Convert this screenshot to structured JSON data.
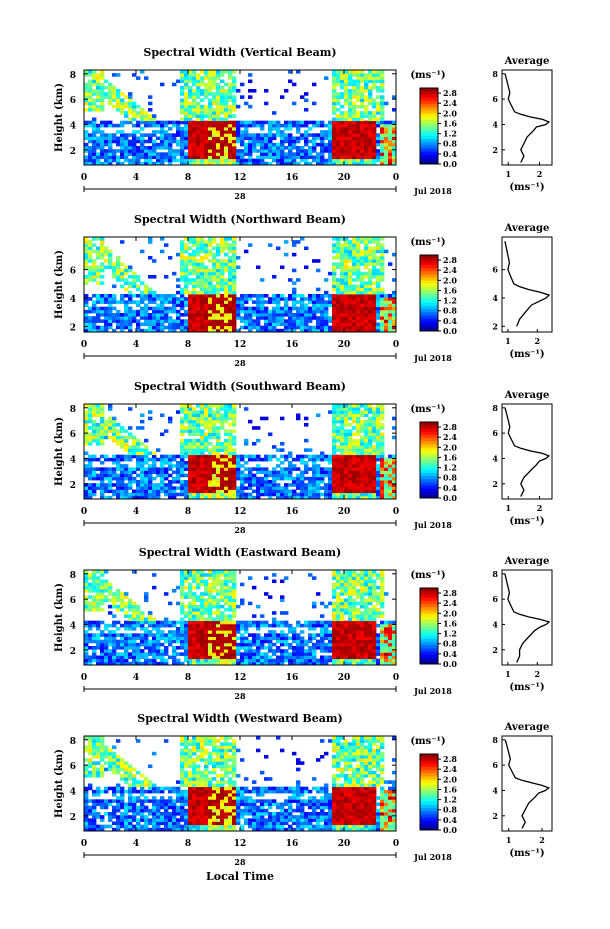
{
  "figure": {
    "xlabel": "Local Time",
    "date_label": "Jul 2018",
    "day_label": "28",
    "cbar_unit": "(ms⁻¹)",
    "profile_title": "Average",
    "profile_xlabel": "(ms⁻¹)"
  },
  "chart_data": [
    {
      "type": "heatmap",
      "title": "Spectral Width (Vertical Beam)",
      "ylabel": "Height (km)",
      "xlabel": "",
      "x_ticks": [
        "0",
        "4",
        "8",
        "12",
        "16",
        "20",
        "0"
      ],
      "y_ticks": [
        "2",
        "4",
        "6",
        "8"
      ],
      "xlim": [
        0,
        24
      ],
      "ylim": [
        0.8,
        8.3
      ],
      "colorbar": {
        "ticks": [
          "0.0",
          "0.4",
          "0.8",
          "1.2",
          "1.6",
          "2.0",
          "2.4",
          "2.8"
        ],
        "range": [
          0,
          3.0
        ]
      },
      "average_profile": {
        "xlabel": "(ms⁻¹)",
        "x_ticks": [
          "1",
          "2"
        ],
        "xlim": [
          0.8,
          2.4
        ],
        "heights": [
          1.0,
          1.5,
          2.0,
          2.5,
          3.0,
          3.5,
          3.8,
          4.0,
          4.2,
          4.4,
          4.6,
          4.8,
          5.0,
          5.5,
          6.0,
          6.5,
          7.0,
          7.5,
          8.0
        ],
        "values": [
          1.4,
          1.5,
          1.4,
          1.5,
          1.6,
          1.8,
          1.9,
          2.2,
          2.3,
          2.1,
          1.7,
          1.4,
          1.2,
          1.1,
          1.0,
          1.05,
          1.0,
          0.95,
          0.9
        ]
      }
    },
    {
      "type": "heatmap",
      "title": "Spectral Width (Northward Beam)",
      "ylabel": "Height (km)",
      "xlabel": "",
      "x_ticks": [
        "0",
        "4",
        "8",
        "12",
        "16",
        "20",
        "0"
      ],
      "y_ticks": [
        "2",
        "4",
        "6"
      ],
      "xlim": [
        0,
        24
      ],
      "ylim": [
        1.6,
        8.3
      ],
      "colorbar": {
        "ticks": [
          "0.0",
          "0.4",
          "0.8",
          "1.2",
          "1.6",
          "2.0",
          "2.4",
          "2.8"
        ],
        "range": [
          0,
          3.0
        ]
      },
      "average_profile": {
        "xlabel": "(ms⁻¹)",
        "x_ticks": [
          "1",
          "2"
        ],
        "xlim": [
          0.8,
          2.5
        ],
        "heights": [
          2.0,
          2.5,
          3.0,
          3.5,
          3.8,
          4.0,
          4.2,
          4.4,
          4.6,
          4.8,
          5.0,
          5.5,
          6.0,
          6.5,
          7.0,
          7.5,
          8.0
        ],
        "values": [
          1.3,
          1.4,
          1.6,
          1.8,
          2.1,
          2.3,
          2.4,
          2.1,
          1.7,
          1.4,
          1.2,
          1.1,
          1.0,
          1.05,
          1.0,
          0.95,
          0.9
        ]
      }
    },
    {
      "type": "heatmap",
      "title": "Spectral Width (Southward Beam)",
      "ylabel": "Height (km)",
      "xlabel": "",
      "x_ticks": [
        "0",
        "4",
        "8",
        "12",
        "16",
        "20",
        "0"
      ],
      "y_ticks": [
        "2",
        "4",
        "6",
        "8"
      ],
      "xlim": [
        0,
        24
      ],
      "ylim": [
        0.8,
        8.3
      ],
      "colorbar": {
        "ticks": [
          "0.0",
          "0.4",
          "0.8",
          "1.2",
          "1.6",
          "2.0",
          "2.4",
          "2.8"
        ],
        "range": [
          0,
          3.0
        ]
      },
      "average_profile": {
        "xlabel": "(ms⁻¹)",
        "x_ticks": [
          "1",
          "2"
        ],
        "xlim": [
          0.8,
          2.4
        ],
        "heights": [
          1.0,
          1.5,
          2.0,
          2.5,
          3.0,
          3.5,
          3.8,
          4.0,
          4.2,
          4.4,
          4.6,
          4.8,
          5.0,
          5.5,
          6.0,
          6.5,
          7.0,
          7.5,
          8.0
        ],
        "values": [
          1.4,
          1.5,
          1.4,
          1.5,
          1.7,
          1.9,
          2.0,
          2.2,
          2.3,
          2.1,
          1.7,
          1.4,
          1.2,
          1.1,
          1.0,
          1.05,
          1.0,
          0.95,
          0.9
        ]
      }
    },
    {
      "type": "heatmap",
      "title": "Spectral Width (Eastward Beam)",
      "ylabel": "Height (km)",
      "xlabel": "",
      "x_ticks": [
        "0",
        "4",
        "8",
        "12",
        "16",
        "20",
        "0"
      ],
      "y_ticks": [
        "2",
        "4",
        "6",
        "8"
      ],
      "xlim": [
        0,
        24
      ],
      "ylim": [
        0.8,
        8.3
      ],
      "colorbar": {
        "ticks": [
          "0.0",
          "0.4",
          "0.8",
          "1.2",
          "1.6",
          "2.0",
          "2.4",
          "2.8"
        ],
        "range": [
          0,
          3.0
        ]
      },
      "average_profile": {
        "xlabel": "(ms⁻¹)",
        "x_ticks": [
          "1",
          "2"
        ],
        "xlim": [
          0.8,
          2.5
        ],
        "heights": [
          1.0,
          1.5,
          2.0,
          2.5,
          3.0,
          3.5,
          3.8,
          4.0,
          4.2,
          4.4,
          4.6,
          4.8,
          5.0,
          5.5,
          6.0,
          6.5,
          7.0,
          7.5,
          8.0
        ],
        "values": [
          1.3,
          1.4,
          1.4,
          1.5,
          1.7,
          1.9,
          2.1,
          2.3,
          2.4,
          2.1,
          1.7,
          1.4,
          1.2,
          1.1,
          1.0,
          1.05,
          1.0,
          0.95,
          0.9
        ]
      }
    },
    {
      "type": "heatmap",
      "title": "Spectral Width (Westward Beam)",
      "ylabel": "Height (km)",
      "xlabel": "Local Time",
      "x_ticks": [
        "0",
        "4",
        "8",
        "12",
        "16",
        "20",
        "0"
      ],
      "y_ticks": [
        "2",
        "4",
        "6",
        "8"
      ],
      "xlim": [
        0,
        24
      ],
      "ylim": [
        0.8,
        8.3
      ],
      "colorbar": {
        "ticks": [
          "0.0",
          "0.4",
          "0.8",
          "1.2",
          "1.6",
          "2.0",
          "2.4",
          "2.8"
        ],
        "range": [
          0,
          3.0
        ]
      },
      "average_profile": {
        "xlabel": "(ms⁻¹)",
        "x_ticks": [
          "1",
          "2"
        ],
        "xlim": [
          0.8,
          2.3
        ],
        "heights": [
          1.0,
          1.5,
          2.0,
          2.5,
          3.0,
          3.5,
          3.8,
          4.0,
          4.2,
          4.4,
          4.6,
          4.8,
          5.0,
          5.5,
          6.0,
          6.5,
          7.0,
          7.5,
          8.0
        ],
        "values": [
          1.4,
          1.5,
          1.4,
          1.5,
          1.6,
          1.8,
          1.9,
          2.1,
          2.2,
          2.0,
          1.7,
          1.4,
          1.2,
          1.1,
          1.0,
          1.05,
          1.0,
          0.95,
          0.9
        ]
      }
    }
  ]
}
